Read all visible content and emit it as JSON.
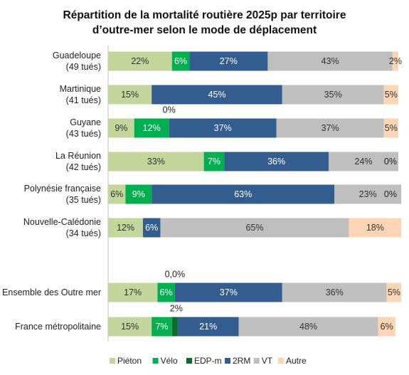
{
  "title_lines": [
    "Répartition de la mortalité routière 2025p par territoire",
    "d’outre-mer selon le mode de déplacement"
  ],
  "chart_data": {
    "type": "bar",
    "orientation": "horizontal",
    "stacked": "percent",
    "title": "Répartition de la mortalité routière 2025p par territoire d’outre-mer selon le mode de déplacement",
    "xlim": [
      0,
      100
    ],
    "grid": false,
    "legend_position": "bottom",
    "categories": [
      [
        "Guadeloupe",
        "(49 tués)"
      ],
      [
        "Martinique",
        "(41 tués)"
      ],
      [
        "Guyane",
        "(43 tués)"
      ],
      [
        "La Réunion",
        "(42 tués)"
      ],
      [
        "Polynésie française",
        "(35 tués)"
      ],
      [
        "Nouvelle-Calédonie",
        "(34 tués)"
      ],
      [
        "Ensemble des Outre mer"
      ],
      [
        "France métropolitaine"
      ]
    ],
    "series": [
      {
        "name": "Piéton",
        "color": "#c3d69b",
        "label_color": "#333333",
        "values": [
          22,
          15,
          9,
          33,
          6,
          12,
          17,
          15
        ],
        "labels": [
          "22%",
          "15%",
          "9%",
          "33%",
          "6%",
          "12%",
          "17%",
          "15%"
        ]
      },
      {
        "name": "Vélo",
        "color": "#00b050",
        "label_color": "#ffffff",
        "values": [
          6,
          0,
          12,
          7,
          9,
          0,
          6,
          7
        ],
        "labels": [
          "6%",
          "",
          "12%",
          "7%",
          "9%",
          "",
          "6%",
          "7%"
        ]
      },
      {
        "name": "EDP-m",
        "color": "#0a6b2a",
        "label_color": "#333333",
        "values": [
          0,
          0,
          0,
          0,
          0,
          0,
          0,
          2
        ],
        "labels": [
          "",
          "",
          "0%",
          "",
          "",
          "",
          "0,0%",
          "2%"
        ],
        "labels_above": true
      },
      {
        "name": "2RM",
        "color": "#345d8f",
        "label_color": "#ffffff",
        "values": [
          27,
          45,
          37,
          36,
          63,
          6,
          37,
          21
        ],
        "labels": [
          "27%",
          "45%",
          "37%",
          "36%",
          "63%",
          "6%",
          "37%",
          "21%"
        ]
      },
      {
        "name": "VT",
        "color": "#bfbfbf",
        "label_color": "#333333",
        "values": [
          43,
          35,
          37,
          24,
          23,
          65,
          36,
          48
        ],
        "labels": [
          "43%",
          "35%",
          "37%",
          "24%",
          "23%",
          "65%",
          "36%",
          "48%"
        ]
      },
      {
        "name": "Autre",
        "color": "#fcd5b4",
        "label_color": "#333333",
        "values": [
          2,
          5,
          5,
          0,
          0,
          18,
          5,
          6
        ],
        "labels": [
          "2%",
          "5%",
          "5%",
          "0%",
          "0%",
          "18%",
          "5%",
          "6%"
        ]
      }
    ]
  }
}
